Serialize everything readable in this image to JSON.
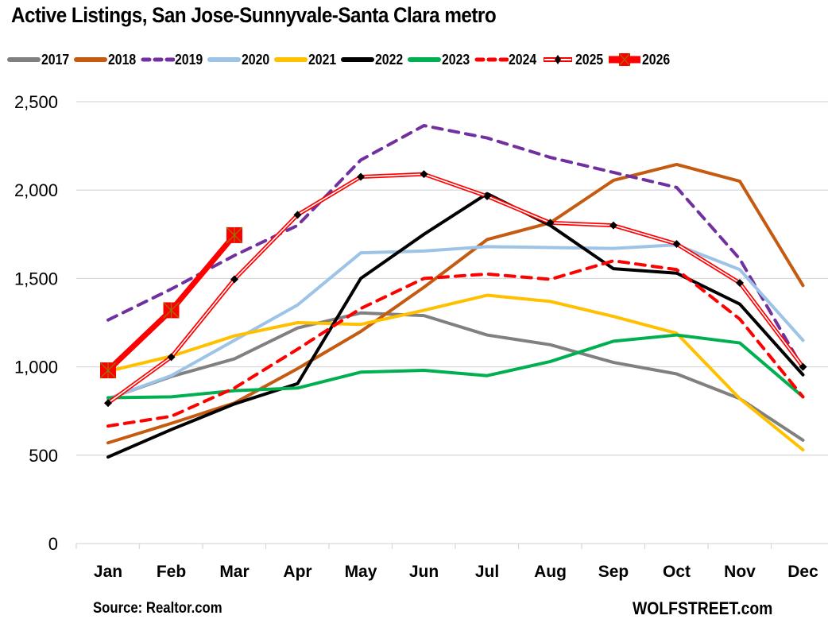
{
  "chart_data": {
    "type": "line",
    "title": "Active Listings, San Jose-Sunnyvale-Santa Clara metro",
    "xlabel": "",
    "ylabel": "",
    "ylim": [
      0,
      2500
    ],
    "yticks": [
      0,
      500,
      1000,
      1500,
      2000,
      2500
    ],
    "ytick_labels": [
      "0",
      "500",
      "1,000",
      "1,500",
      "2,000",
      "2,500"
    ],
    "grid": true,
    "legend_position": "top",
    "categories": [
      "Jan",
      "Feb",
      "Mar",
      "Apr",
      "May",
      "Jun",
      "Jul",
      "Aug",
      "Sep",
      "Oct",
      "Nov",
      "Dec"
    ],
    "series": [
      {
        "name": "2017",
        "color": "#808080",
        "style": "solid",
        "values": [
          820,
          945,
          1045,
          1220,
          1305,
          1290,
          1180,
          1125,
          1025,
          960,
          820,
          585
        ]
      },
      {
        "name": "2018",
        "color": "#C55A11",
        "style": "solid",
        "values": [
          570,
          680,
          795,
          990,
          1200,
          1450,
          1720,
          1815,
          2055,
          2145,
          2050,
          1460
        ]
      },
      {
        "name": "2019",
        "color": "#7030A0",
        "style": "dash",
        "values": [
          1265,
          1440,
          1630,
          1800,
          2170,
          2365,
          2295,
          2185,
          2100,
          2015,
          1610,
          990
        ]
      },
      {
        "name": "2020",
        "color": "#9DC3E6",
        "style": "solid",
        "values": [
          820,
          950,
          1150,
          1350,
          1645,
          1655,
          1680,
          1675,
          1670,
          1690,
          1550,
          1150
        ]
      },
      {
        "name": "2021",
        "color": "#FFC000",
        "style": "solid",
        "values": [
          975,
          1060,
          1175,
          1250,
          1240,
          1320,
          1405,
          1370,
          1285,
          1190,
          820,
          530
        ]
      },
      {
        "name": "2022",
        "color": "#000000",
        "style": "solid",
        "values": [
          490,
          645,
          790,
          905,
          1500,
          1750,
          1980,
          1800,
          1555,
          1530,
          1355,
          955
        ]
      },
      {
        "name": "2023",
        "color": "#00B050",
        "style": "solid",
        "values": [
          825,
          830,
          865,
          880,
          970,
          980,
          950,
          1030,
          1145,
          1180,
          1135,
          830
        ]
      },
      {
        "name": "2024",
        "color": "#FF0000",
        "style": "dash",
        "values": [
          665,
          720,
          880,
          1100,
          1330,
          1500,
          1525,
          1495,
          1600,
          1550,
          1270,
          830
        ]
      },
      {
        "name": "2025",
        "color": "#FF0000",
        "style": "double",
        "marker": "diamond",
        "values": [
          795,
          1055,
          1495,
          1860,
          2075,
          2090,
          1965,
          1815,
          1800,
          1695,
          1475,
          1000
        ]
      },
      {
        "name": "2026",
        "color": "#FF0000",
        "style": "thick",
        "marker": "square-x",
        "values": [
          980,
          1320,
          1745
        ]
      }
    ],
    "source": "Source: Realtor.com",
    "brand": "WOLFSTREET.com"
  }
}
